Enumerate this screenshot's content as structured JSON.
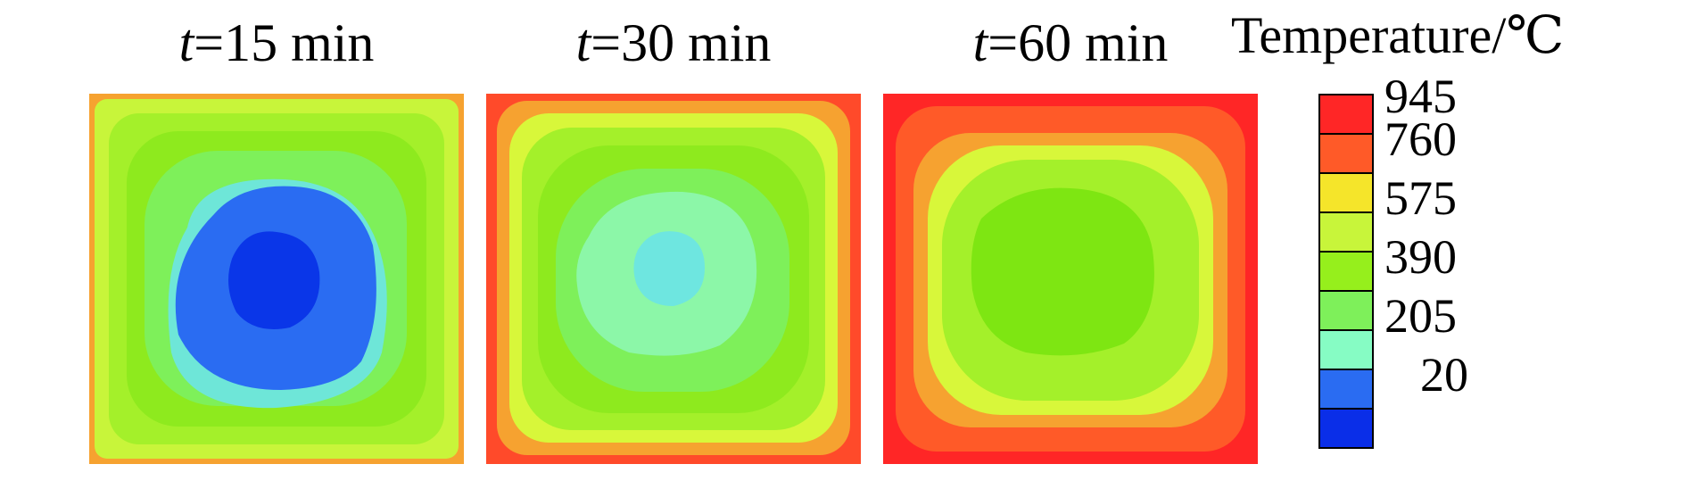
{
  "panels": [
    {
      "t_symbol": "t",
      "label": "=15 min"
    },
    {
      "t_symbol": "t",
      "label": "=30 min"
    },
    {
      "t_symbol": "t",
      "label": "=60 min"
    }
  ],
  "legend": {
    "title": "Temperature/℃",
    "ticks": [
      "945",
      "760",
      "575",
      "390",
      "205",
      "20"
    ],
    "colors": [
      "#ff2626",
      "#ff5a28",
      "#f5e52a",
      "#c8f53a",
      "#96ef1c",
      "#7ef05a",
      "#86fcc4",
      "#2a6cf2",
      "#0a2ee8"
    ]
  }
}
